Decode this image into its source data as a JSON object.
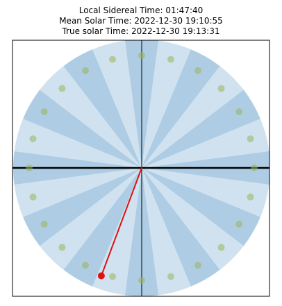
{
  "titles": {
    "sidereal": "Local Sidereal Time: 01:47:40",
    "mean_solar": "Mean Solar Time: 2022-12-30 19:10:55",
    "true_solar": "True solar Time: 2022-12-30 19:13:31"
  },
  "colors": {
    "wedge_dark": "#aecde4",
    "wedge_light": "#d0e2ef",
    "marker": "#9bb55a",
    "hand": "#dd1111",
    "axis_heavy": "#000000",
    "frame": "#000000"
  },
  "dial": {
    "wedge_count": 24,
    "marker_count": 24,
    "hand_angle_deg": 200.5
  }
}
